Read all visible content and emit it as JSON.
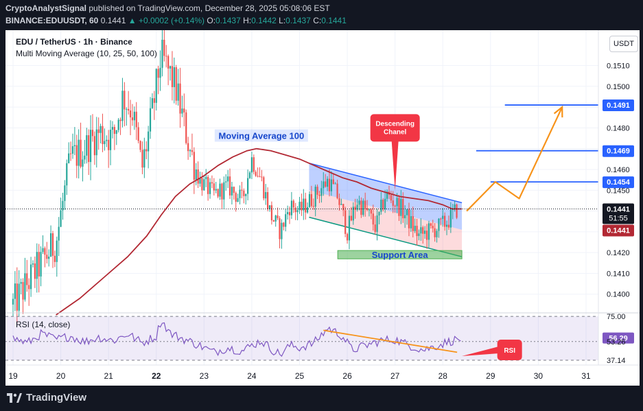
{
  "header": {
    "author": "CryptoAnalystSignal",
    "published": "published on TradingView.com, December 28, 2025 05:08:06 EST",
    "symbol": "BINANCE:EDUUSDT, 60",
    "last": "0.1441",
    "change": "▲ +0.0002 (+0.14%)",
    "o_label": "O:",
    "o_value": "0.1437",
    "h_label": "H:",
    "h_value": "0.1442",
    "l_label": "L:",
    "l_value": "0.1437",
    "c_label": "C:",
    "c_value": "0.1441"
  },
  "legend": {
    "pair": "EDU / TetherUS · 1h · Binance",
    "indicator": "Multi Moving Average (10, 25, 50, 100)"
  },
  "currency_label": "USDT",
  "rsi_legend": "RSI (14, close)",
  "footer": {
    "brand": "TradingView"
  },
  "colors": {
    "up": "#26a69a",
    "down": "#ef5350",
    "ma100": "#b22833",
    "rsi": "#7e57c2",
    "blue": "#2962ff",
    "orange": "#f7931a",
    "red_callout": "#f23645"
  },
  "chart_data": {
    "type": "candlestick",
    "title": "",
    "x_ticks": [
      "19",
      "20",
      "21",
      "22",
      "23",
      "24",
      "25",
      "26",
      "27",
      "28",
      "29",
      "30",
      "31"
    ],
    "x_tick_day": [
      19,
      20,
      21,
      22,
      23,
      24,
      25,
      26,
      27,
      28,
      29,
      30,
      31
    ],
    "price_axis": {
      "ylim": [
        0.1391,
        0.1527
      ],
      "ticks": [
        "0.1400",
        "0.1410",
        "0.1420",
        "0.1430",
        "0.1440",
        "0.1450",
        "0.1460",
        "0.1470",
        "0.1480",
        "0.1490",
        "0.1500",
        "0.1510"
      ],
      "tick_values": [
        0.14,
        0.141,
        0.142,
        0.143,
        0.144,
        0.145,
        0.146,
        0.147,
        0.148,
        0.149,
        0.15,
        0.151
      ]
    },
    "price_path": [
      [
        19.0,
        0.1395
      ],
      [
        19.5,
        0.1412
      ],
      [
        19.9,
        0.1425
      ],
      [
        20.2,
        0.1465
      ],
      [
        20.5,
        0.147
      ],
      [
        20.8,
        0.1478
      ],
      [
        21.1,
        0.1475
      ],
      [
        21.3,
        0.1495
      ],
      [
        21.5,
        0.1488
      ],
      [
        21.7,
        0.146
      ],
      [
        21.9,
        0.1485
      ],
      [
        22.1,
        0.1515
      ],
      [
        22.4,
        0.15
      ],
      [
        22.7,
        0.147
      ],
      [
        22.9,
        0.1455
      ],
      [
        23.2,
        0.1448
      ],
      [
        23.5,
        0.1452
      ],
      [
        23.8,
        0.1445
      ],
      [
        24.0,
        0.1465
      ],
      [
        24.2,
        0.1455
      ],
      [
        24.4,
        0.1438
      ],
      [
        24.6,
        0.143
      ],
      [
        24.8,
        0.1443
      ],
      [
        25.0,
        0.144
      ],
      [
        25.3,
        0.1447
      ],
      [
        25.6,
        0.1455
      ],
      [
        25.8,
        0.1447
      ],
      [
        26.0,
        0.143
      ],
      [
        26.2,
        0.1445
      ],
      [
        26.4,
        0.144
      ],
      [
        26.6,
        0.1432
      ],
      [
        26.8,
        0.1448
      ],
      [
        27.1,
        0.1442
      ],
      [
        27.3,
        0.1435
      ],
      [
        27.5,
        0.1428
      ],
      [
        27.7,
        0.143
      ],
      [
        27.9,
        0.1432
      ],
      [
        28.1,
        0.1435
      ],
      [
        28.3,
        0.1441
      ]
    ],
    "ma100": [
      [
        19.9,
        0.139
      ],
      [
        20.4,
        0.1398
      ],
      [
        20.9,
        0.1408
      ],
      [
        21.4,
        0.1418
      ],
      [
        21.8,
        0.1428
      ],
      [
        22.1,
        0.1438
      ],
      [
        22.4,
        0.1447
      ],
      [
        22.7,
        0.1453
      ],
      [
        23.0,
        0.1457
      ],
      [
        23.3,
        0.1462
      ],
      [
        23.6,
        0.1466
      ],
      [
        23.9,
        0.1469
      ],
      [
        24.1,
        0.147
      ],
      [
        24.4,
        0.1469
      ],
      [
        24.7,
        0.1467
      ],
      [
        25.0,
        0.1465
      ],
      [
        25.3,
        0.1462
      ],
      [
        25.6,
        0.1459
      ],
      [
        25.9,
        0.1456
      ],
      [
        26.2,
        0.1454
      ],
      [
        26.5,
        0.1451
      ],
      [
        26.8,
        0.1449
      ],
      [
        27.1,
        0.1447
      ],
      [
        27.4,
        0.1446
      ],
      [
        27.7,
        0.1445
      ],
      [
        28.0,
        0.1443
      ],
      [
        28.2,
        0.1441
      ],
      [
        28.4,
        0.1441
      ]
    ],
    "channel": {
      "upper": [
        [
          25.2,
          0.1463
        ],
        [
          28.4,
          0.1444
        ]
      ],
      "lower": [
        [
          25.2,
          0.1437
        ],
        [
          28.4,
          0.1418
        ]
      ],
      "mid": [
        [
          25.2,
          0.145
        ],
        [
          28.4,
          0.1431
        ]
      ]
    },
    "support_area": {
      "x": [
        25.8,
        28.4
      ],
      "y": [
        0.1417,
        0.1421
      ],
      "label": "Support Area"
    },
    "ma_label": {
      "text": "Moving Average 100",
      "x": 24.2,
      "y": 0.1476
    },
    "descending_callout": {
      "text": [
        "Descending",
        "Chanel"
      ],
      "x": 27.0,
      "y": 0.148,
      "arrow_to_y": 0.145
    },
    "targets": [
      {
        "value": 0.1491,
        "label": "0.1491",
        "x_start": 29.3
      },
      {
        "value": 0.1469,
        "label": "0.1469",
        "x_start": 28.7
      },
      {
        "value": 0.1454,
        "label": "0.1454",
        "x_start": 29.0
      }
    ],
    "projection": [
      [
        28.5,
        0.144
      ],
      [
        29.1,
        0.1454
      ],
      [
        29.6,
        0.1446
      ],
      [
        30.5,
        0.149
      ]
    ],
    "current_price": {
      "value": 0.1441,
      "label": "0.1441",
      "countdown": "51:55"
    },
    "prev_close_label": {
      "value": 0.1441,
      "label": "0.1441"
    },
    "rsi": {
      "ylim": [
        33,
        78
      ],
      "ticks": [
        "75.00",
        "56.29",
        "53.26",
        "37.14"
      ],
      "tick_values": [
        75.0,
        56.29,
        53.26,
        37.14
      ],
      "band": [
        37.14,
        75.0
      ],
      "mid": 53.26,
      "current": 56.29,
      "series": [
        [
          19.0,
          56
        ],
        [
          19.3,
          52
        ],
        [
          19.6,
          60
        ],
        [
          19.9,
          55
        ],
        [
          20.2,
          58
        ],
        [
          20.5,
          53
        ],
        [
          20.8,
          57
        ],
        [
          21.1,
          54
        ],
        [
          21.4,
          60
        ],
        [
          21.7,
          52
        ],
        [
          22.0,
          58
        ],
        [
          22.1,
          72
        ],
        [
          22.3,
          60
        ],
        [
          22.6,
          55
        ],
        [
          22.9,
          50
        ],
        [
          23.2,
          44
        ],
        [
          23.5,
          48
        ],
        [
          23.8,
          45
        ],
        [
          24.0,
          50
        ],
        [
          24.2,
          54
        ],
        [
          24.4,
          47
        ],
        [
          24.6,
          42
        ],
        [
          24.8,
          50
        ],
        [
          25.0,
          48
        ],
        [
          25.3,
          52
        ],
        [
          25.6,
          65
        ],
        [
          25.9,
          58
        ],
        [
          26.1,
          46
        ],
        [
          26.4,
          50
        ],
        [
          26.7,
          54
        ],
        [
          27.0,
          55
        ],
        [
          27.3,
          50
        ],
        [
          27.6,
          46
        ],
        [
          27.9,
          50
        ],
        [
          28.1,
          53
        ],
        [
          28.4,
          56
        ]
      ],
      "trendline": [
        [
          25.5,
          63
        ],
        [
          28.3,
          44
        ]
      ],
      "callout": {
        "text": "RSI",
        "x": 29.4,
        "y": 46,
        "arrow_to_x": 28.4
      }
    }
  }
}
